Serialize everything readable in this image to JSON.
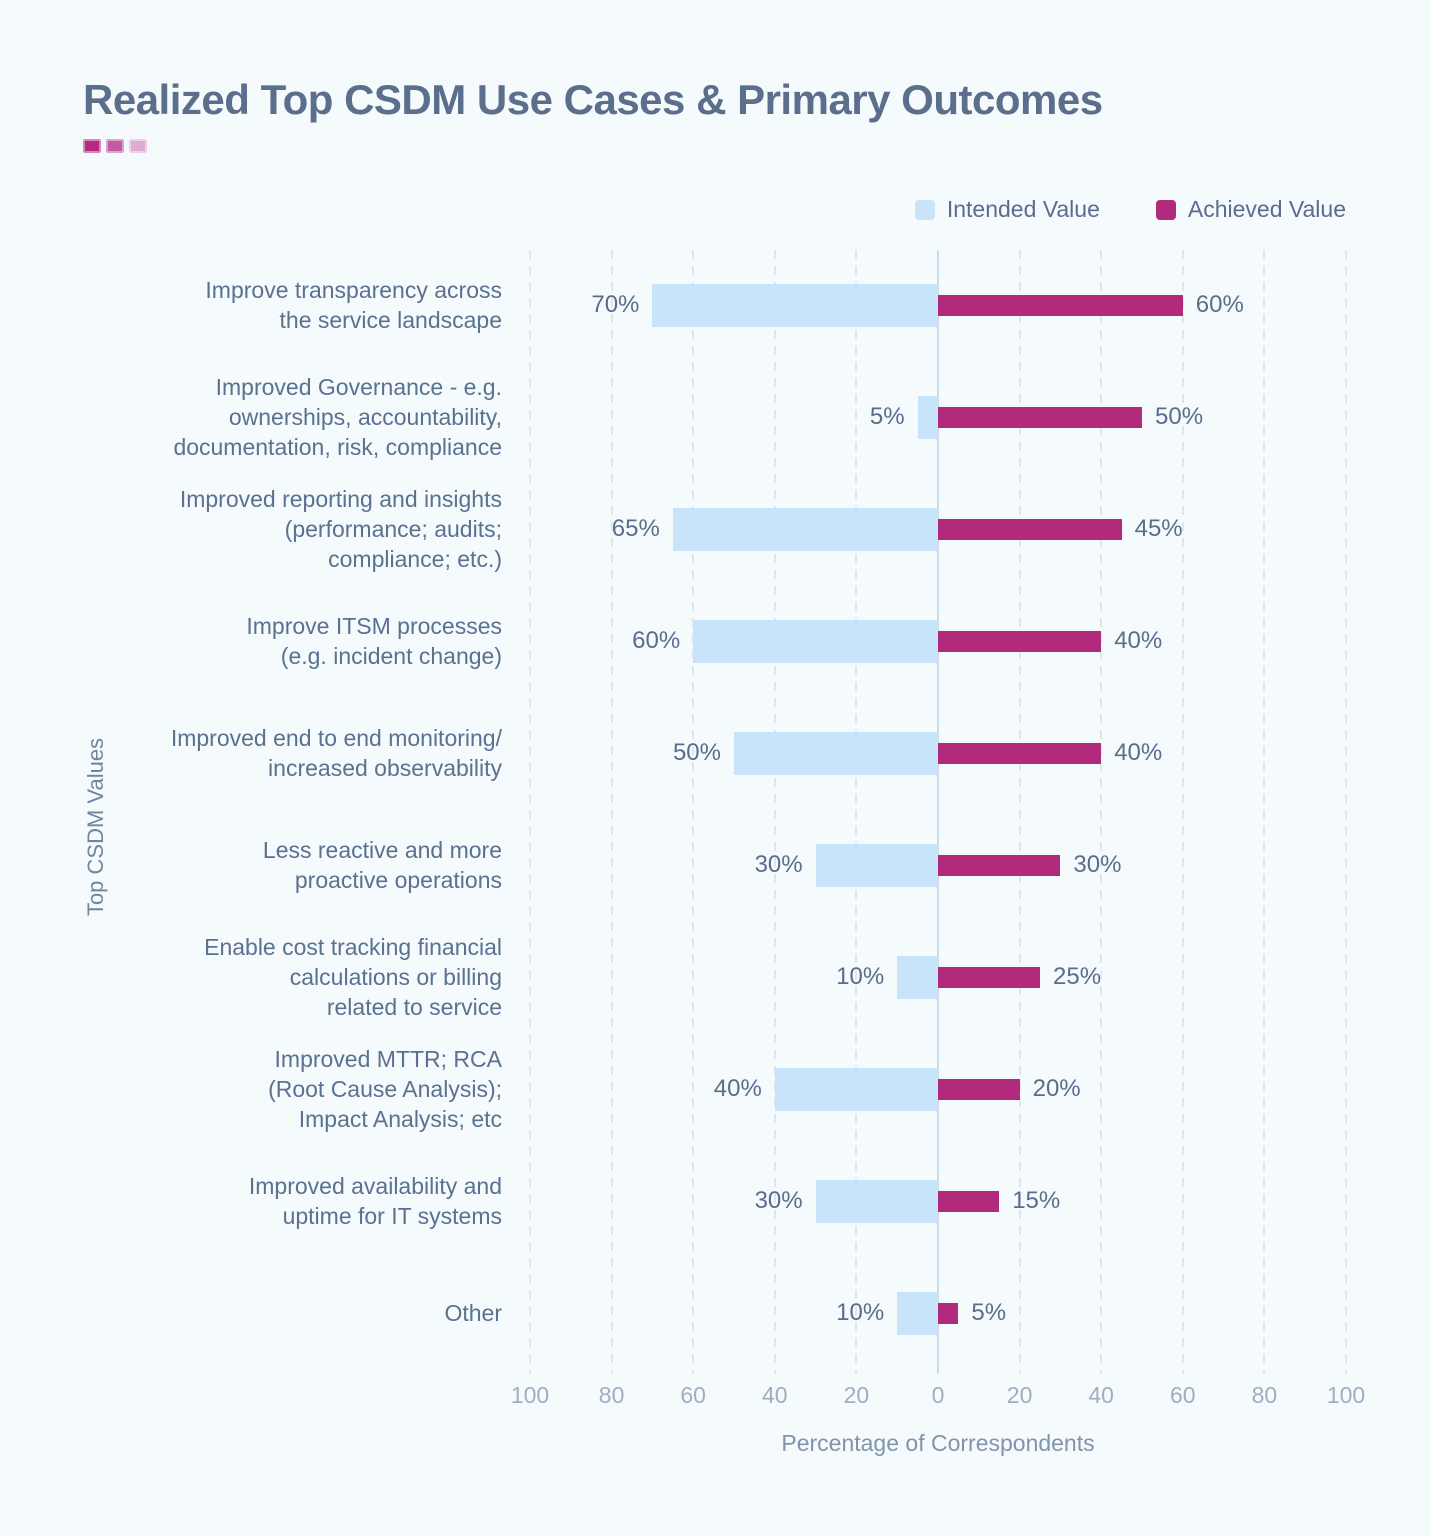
{
  "page": {
    "background": "#f5fafd",
    "title": "Realized Top CSDM Use Cases & Primary Outcomes",
    "title_accent_colors": [
      "#b42a80",
      "#c15ba2",
      "#e0aad4"
    ]
  },
  "legend": {
    "items": [
      {
        "label": "Intended Value",
        "color": "#c9e4fa"
      },
      {
        "label": "Achieved Value",
        "color": "#b12a7b"
      }
    ]
  },
  "chart_data": {
    "type": "bar",
    "variant": "diverging-horizontal",
    "title": "Realized Top CSDM Use Cases & Primary Outcomes",
    "xlabel": "Percentage of Correspondents",
    "ylabel": "Top CSDM Values",
    "value_suffix": "%",
    "axis_range": [
      -100,
      100
    ],
    "x_tick_values": [
      -100,
      -80,
      -60,
      -40,
      -20,
      0,
      20,
      40,
      60,
      80,
      100
    ],
    "x_tick_labels": [
      "100",
      "80",
      "60",
      "40",
      "20",
      "0",
      "20",
      "40",
      "60",
      "80",
      "100"
    ],
    "grid": "dashed-vertical",
    "legend_position": "top-right",
    "categories": [
      "Improve transparency across\nthe service landscape",
      "Improved Governance - e.g.\nownerships, accountability,\ndocumentation, risk, compliance",
      "Improved reporting and insights\n(performance; audits;\ncompliance; etc.)",
      "Improve ITSM processes\n(e.g. incident change)",
      "Improved end to end monitoring/\nincreased observability",
      "Less reactive and more\nproactive operations",
      "Enable cost tracking financial\ncalculations or billing\nrelated to service",
      "Improved MTTR; RCA\n(Root Cause Analysis);\nImpact Analysis; etc",
      "Improved availability and\nuptime for IT systems",
      "Other"
    ],
    "series": [
      {
        "name": "Intended Value",
        "side": "left",
        "color": "#c9e4fa",
        "values": [
          70,
          5,
          65,
          60,
          50,
          30,
          10,
          40,
          30,
          10
        ]
      },
      {
        "name": "Achieved Value",
        "side": "right",
        "color": "#b12a7b",
        "values": [
          60,
          50,
          45,
          40,
          40,
          30,
          25,
          20,
          15,
          5
        ]
      }
    ]
  }
}
